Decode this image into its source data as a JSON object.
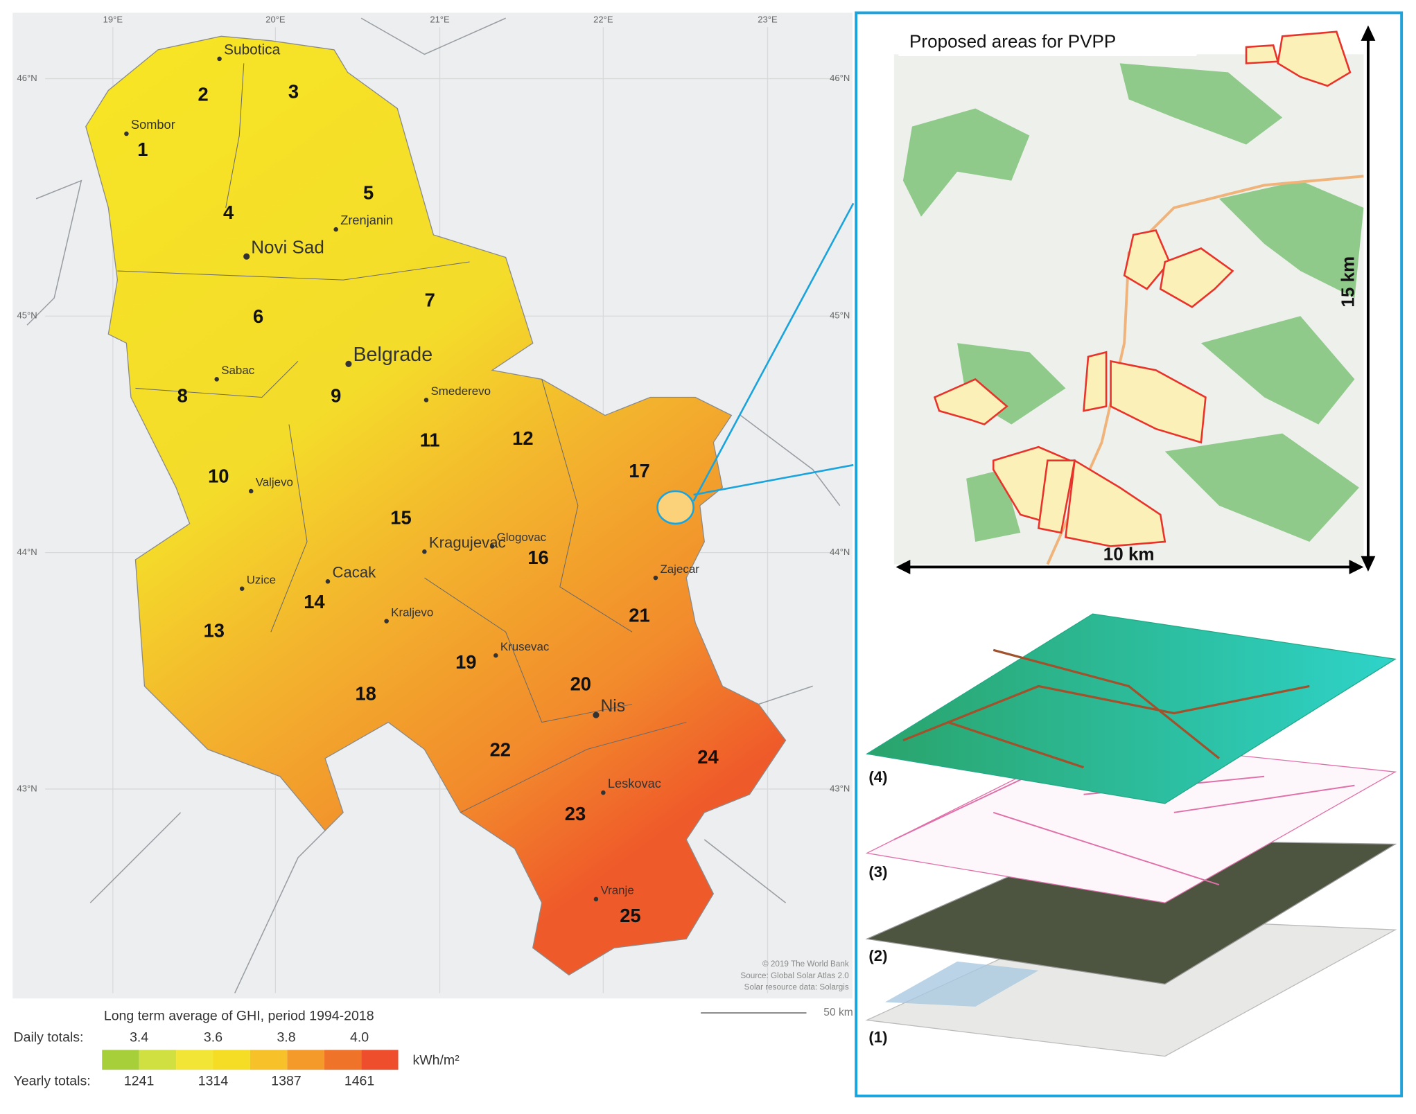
{
  "map": {
    "longitude_labels": [
      "19°E",
      "20°E",
      "21°E",
      "22°E",
      "23°E"
    ],
    "latitude_labels": [
      "46°N",
      "45°N",
      "44°N",
      "43°N"
    ],
    "cities": [
      "Subotica",
      "Sombor",
      "Zrenjanin",
      "Novi Sad",
      "Belgrade",
      "Sabac",
      "Smederevo",
      "Valjevo",
      "Glogovac",
      "Kragujevac",
      "Zajecar",
      "Uzice",
      "Cacak",
      "Kraljevo",
      "Krusevac",
      "Nis",
      "Leskovac",
      "Vranje"
    ],
    "regions": [
      "1",
      "2",
      "3",
      "4",
      "5",
      "6",
      "7",
      "8",
      "9",
      "10",
      "11",
      "12",
      "13",
      "14",
      "15",
      "16",
      "17",
      "18",
      "19",
      "20",
      "21",
      "22",
      "23",
      "24",
      "25"
    ],
    "credits": [
      "© 2019 The World Bank",
      "Source: Global Solar Atlas 2.0",
      "Solar resource data: Solargis"
    ],
    "scale_bar": "50 km"
  },
  "legend": {
    "title": "Long term average of GHI, period 1994-2018",
    "daily_label": "Daily totals:",
    "daily_values": [
      "3.4",
      "3.6",
      "3.8",
      "4.0"
    ],
    "yearly_label": "Yearly totals:",
    "yearly_values": [
      "1241",
      "1314",
      "1387",
      "1461"
    ],
    "unit": "kWh/m²"
  },
  "inset": {
    "title": "Proposed areas for PVPP",
    "height_label": "15 km",
    "width_label": "10 km",
    "layers": [
      "(4)",
      "(3)",
      "(2)",
      "(1)"
    ]
  }
}
